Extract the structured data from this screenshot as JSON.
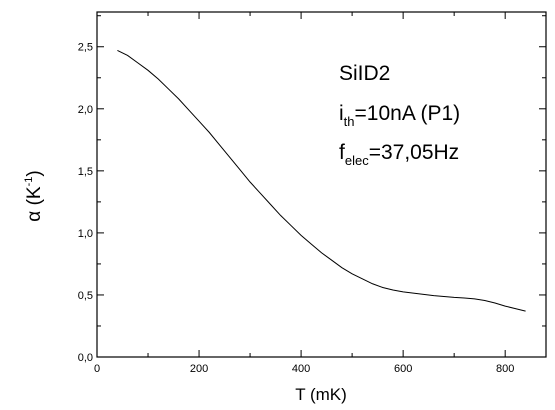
{
  "chart_data": {
    "type": "line",
    "title": "",
    "xlabel": "T (mK)",
    "ylabel_main": "α (K",
    "ylabel_sup": "-1",
    "ylabel_close": ")",
    "xlim": [
      0,
      880
    ],
    "ylim": [
      0.0,
      2.78
    ],
    "x_ticks": [
      0,
      200,
      400,
      600,
      800
    ],
    "x_tick_labels": [
      "0",
      "200",
      "400",
      "600",
      "800"
    ],
    "y_ticks": [
      0.0,
      0.5,
      1.0,
      1.5,
      2.0,
      2.5
    ],
    "y_tick_labels": [
      "0,0",
      "0,5",
      "1,0",
      "1,5",
      "2,0",
      "2,5"
    ],
    "x_minor_step": 100,
    "y_minor_step": 0.25,
    "grid": false,
    "line_color": "#000000",
    "series": [
      {
        "x": [
          40,
          60,
          80,
          100,
          120,
          140,
          160,
          180,
          200,
          220,
          240,
          260,
          280,
          300,
          320,
          340,
          360,
          380,
          400,
          420,
          440,
          460,
          480,
          500,
          520,
          540,
          560,
          580,
          600,
          620,
          640,
          660,
          680,
          700,
          720,
          740,
          760,
          780,
          800,
          820,
          840
        ],
        "y": [
          2.47,
          2.43,
          2.37,
          2.31,
          2.24,
          2.16,
          2.08,
          1.99,
          1.9,
          1.81,
          1.71,
          1.61,
          1.51,
          1.41,
          1.32,
          1.23,
          1.14,
          1.06,
          0.98,
          0.91,
          0.84,
          0.78,
          0.72,
          0.67,
          0.63,
          0.59,
          0.56,
          0.54,
          0.525,
          0.515,
          0.505,
          0.495,
          0.488,
          0.48,
          0.475,
          0.468,
          0.455,
          0.435,
          0.41,
          0.39,
          0.37
        ]
      }
    ]
  },
  "annotation": {
    "line1": "SiID2",
    "line2_main": "i",
    "line2_sub": "th",
    "line2_rest": "=10nA (P1)",
    "line3_main": "f",
    "line3_sub": "elec",
    "line3_rest": "=37,05Hz"
  }
}
